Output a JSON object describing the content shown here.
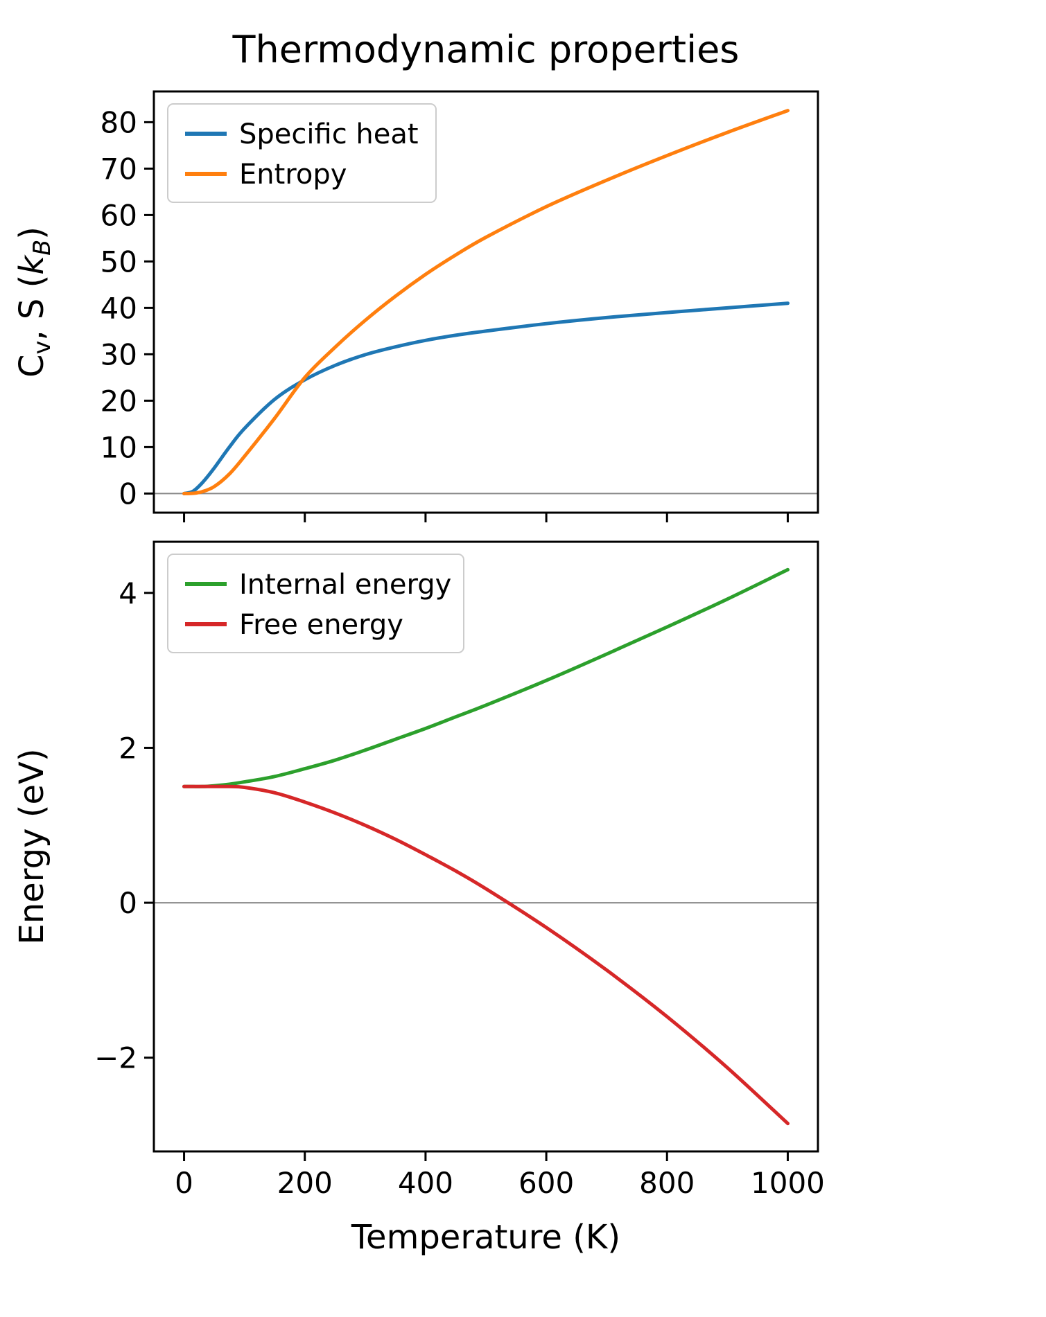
{
  "title": "Thermodynamic properties",
  "xlabel": "Temperature (K)",
  "ylabel_top": {
    "c": "C",
    "v": "v",
    "mid": ", S (",
    "k": "k",
    "b": "B",
    "close": ")"
  },
  "ylabel_bottom": "Energy (eV)",
  "colors": {
    "specific_heat": "#1f77b4",
    "entropy": "#ff7f0e",
    "internal_energy": "#2ca02c",
    "free_energy": "#d62728",
    "zero_line": "#888888",
    "axis": "#000000",
    "legend_border": "#cccccc"
  },
  "chart_data": [
    {
      "type": "line",
      "ylabel": "Cv, S (kB)",
      "xlabel": "",
      "xlim": [
        -50,
        1050
      ],
      "ylim": [
        -4.125,
        86.625
      ],
      "xticks": [
        0,
        200,
        400,
        600,
        800,
        1000
      ],
      "yticks": [
        0,
        10,
        20,
        30,
        40,
        50,
        60,
        70,
        80
      ],
      "show_x_tick_labels": false,
      "grid": false,
      "zero_line": 0,
      "legend_position": "upper left",
      "x": [
        0,
        15,
        30,
        50,
        75,
        100,
        150,
        200,
        250,
        300,
        350,
        400,
        450,
        500,
        600,
        700,
        800,
        900,
        1000
      ],
      "series": [
        {
          "name": "Specific heat",
          "color": "#1f77b4",
          "values": [
            0,
            0.5,
            2.3,
            5.5,
            10.0,
            14.0,
            20.3,
            24.5,
            27.6,
            29.9,
            31.6,
            33.0,
            34.1,
            35.0,
            36.6,
            37.9,
            39.0,
            40.0,
            41.0
          ]
        },
        {
          "name": "Entropy",
          "color": "#ff7f0e",
          "values": [
            0,
            0.05,
            0.4,
            1.5,
            4.2,
            8.0,
            16.2,
            25.0,
            31.5,
            37.3,
            42.5,
            47.2,
            51.4,
            55.2,
            61.8,
            67.5,
            72.8,
            77.8,
            82.5
          ]
        }
      ]
    },
    {
      "type": "line",
      "ylabel": "Energy (eV)",
      "xlabel": "Temperature (K)",
      "xlim": [
        -50,
        1050
      ],
      "ylim": [
        -3.21,
        4.66
      ],
      "xticks": [
        0,
        200,
        400,
        600,
        800,
        1000
      ],
      "yticks": [
        -2,
        0,
        2,
        4
      ],
      "show_x_tick_labels": true,
      "grid": false,
      "zero_line": 0,
      "legend_position": "upper left",
      "x": [
        0,
        15,
        30,
        50,
        75,
        100,
        150,
        200,
        250,
        300,
        350,
        400,
        450,
        500,
        600,
        700,
        800,
        900,
        1000
      ],
      "series": [
        {
          "name": "Internal energy",
          "color": "#2ca02c",
          "values": [
            1.5,
            1.5,
            1.5,
            1.51,
            1.53,
            1.56,
            1.63,
            1.73,
            1.84,
            1.97,
            2.11,
            2.25,
            2.4,
            2.55,
            2.87,
            3.21,
            3.56,
            3.92,
            4.3
          ]
        },
        {
          "name": "Free energy",
          "color": "#d62728",
          "values": [
            1.5,
            1.5,
            1.5,
            1.5,
            1.5,
            1.49,
            1.42,
            1.3,
            1.16,
            1.0,
            0.82,
            0.62,
            0.41,
            0.18,
            -0.32,
            -0.87,
            -1.47,
            -2.13,
            -2.85
          ]
        }
      ]
    }
  ]
}
